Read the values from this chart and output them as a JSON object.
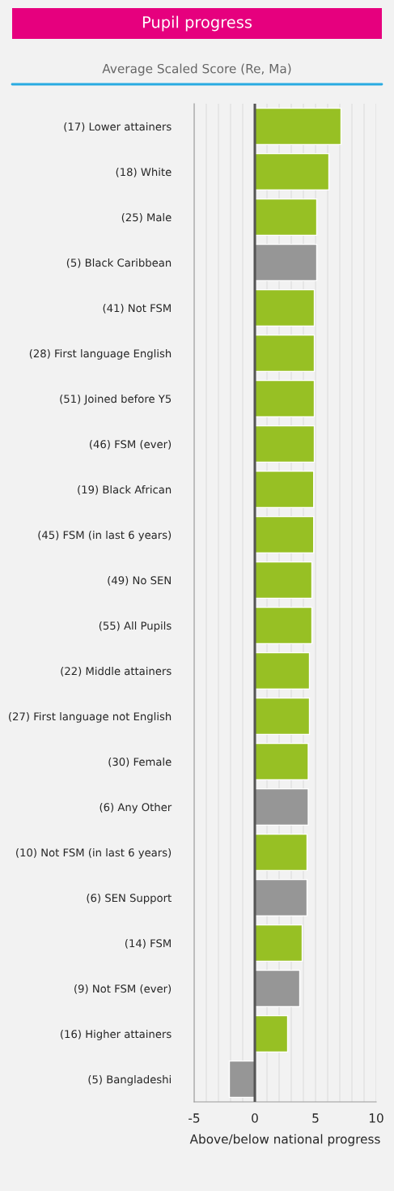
{
  "chart_data": {
    "type": "bar",
    "orientation": "horizontal",
    "title": "Pupil progress",
    "subtitle": "Average Scaled Score (Re, Ma)",
    "xlabel": "Above/below national progress",
    "categories": [
      "(17) Lower attainers",
      "(18) White",
      "(25) Male",
      "(5) Black Caribbean",
      "(41) Not FSM",
      "(28) First language English",
      "(51) Joined before Y5",
      "(46) FSM (ever)",
      "(19) Black African",
      "(45) FSM (in last 6 years)",
      "(49) No SEN",
      "(55) All Pupils",
      "(22) Middle attainers",
      "(27) First language not English",
      "(30) Female",
      "(6) Any Other",
      "(10) Not FSM (in last 6 years)",
      "(6) SEN Support",
      "(14) FSM",
      "(9) Not FSM (ever)",
      "(16) Higher attainers",
      "(5) Bangladeshi"
    ],
    "values": [
      7.1,
      6.1,
      5.1,
      5.1,
      4.9,
      4.9,
      4.9,
      4.9,
      4.85,
      4.85,
      4.7,
      4.7,
      4.5,
      4.5,
      4.4,
      4.4,
      4.3,
      4.3,
      3.9,
      3.7,
      2.7,
      -2.1
    ],
    "colors": [
      "#97c024",
      "#97c024",
      "#97c024",
      "#969696",
      "#97c024",
      "#97c024",
      "#97c024",
      "#97c024",
      "#97c024",
      "#97c024",
      "#97c024",
      "#97c024",
      "#97c024",
      "#97c024",
      "#97c024",
      "#969696",
      "#97c024",
      "#969696",
      "#97c024",
      "#969696",
      "#97c024",
      "#969696"
    ],
    "xlim": [
      -5,
      10
    ],
    "xticks": [
      -5,
      {
        "value": -4,
        "label": null
      },
      {
        "value": -3,
        "label": null
      },
      {
        "value": -2,
        "label": null
      },
      {
        "value": -1,
        "label": null
      },
      0,
      {
        "value": 1,
        "label": null
      },
      {
        "value": 2,
        "label": null
      },
      {
        "value": 3,
        "label": null
      },
      {
        "value": 4,
        "label": null
      },
      5,
      {
        "value": 6,
        "label": null
      },
      {
        "value": 7,
        "label": null
      },
      {
        "value": 8,
        "label": null
      },
      {
        "value": 9,
        "label": null
      },
      10
    ],
    "grid": "x",
    "ref_lines": [
      {
        "axis": "x",
        "value": 0,
        "color": "#555555"
      }
    ]
  }
}
